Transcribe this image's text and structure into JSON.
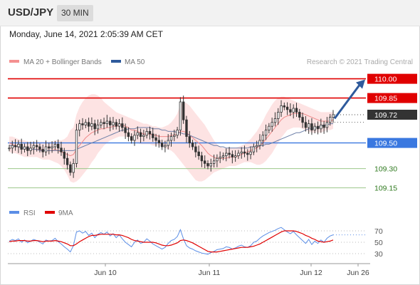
{
  "header": {
    "symbol": "USD/JPY",
    "timeframe": "30 MIN"
  },
  "datetime": "Monday, June 14, 2021 2:05:39 AM CET",
  "credit": "Research © 2021 Trading Central",
  "colors": {
    "bb": "#f49090",
    "ma50": "#2e5a9c",
    "resistance": "#e00000",
    "support_blue": "#3a78e0",
    "support_green": "#6aa84f",
    "current": "#333333",
    "rsi": "#5b8ee6",
    "rsi_ma": "#e00000"
  },
  "chart_data": [
    {
      "type": "line",
      "legend": [
        {
          "name": "MA 20 + Bollinger Bands"
        },
        {
          "name": "MA 50"
        }
      ],
      "ylim": [
        109.07,
        110.07
      ],
      "levels": [
        {
          "value": 110.0,
          "label": "110.00",
          "kind": "resistance"
        },
        {
          "value": 109.85,
          "label": "109.85",
          "kind": "resistance"
        },
        {
          "value": 109.72,
          "label": "109.72",
          "kind": "current"
        },
        {
          "value": 109.5,
          "label": "109.50",
          "kind": "support_blue"
        },
        {
          "value": 109.3,
          "label": "109.30",
          "kind": "support_green"
        },
        {
          "value": 109.15,
          "label": "109.15",
          "kind": "support_green"
        }
      ],
      "x_ticks": [
        "Jun 10",
        "Jun 11",
        "Jun 12",
        "Jun 26"
      ],
      "close": [
        109.46,
        109.48,
        109.47,
        109.49,
        109.45,
        109.47,
        109.44,
        109.46,
        109.48,
        109.47,
        109.45,
        109.43,
        109.47,
        109.46,
        109.47,
        109.49,
        109.46,
        109.43,
        109.38,
        109.33,
        109.27,
        109.34,
        109.6,
        109.65,
        109.64,
        109.66,
        109.63,
        109.65,
        109.61,
        109.64,
        109.66,
        109.65,
        109.67,
        109.64,
        109.66,
        109.63,
        109.65,
        109.62,
        109.58,
        109.55,
        109.52,
        109.56,
        109.58,
        109.55,
        109.56,
        109.59,
        109.57,
        109.54,
        109.52,
        109.5,
        109.47,
        109.48,
        109.52,
        109.55,
        109.56,
        109.6,
        109.82,
        109.68,
        109.55,
        109.5,
        109.47,
        109.43,
        109.4,
        109.36,
        109.34,
        109.32,
        109.34,
        109.36,
        109.38,
        109.39,
        109.4,
        109.42,
        109.41,
        109.39,
        109.4,
        109.42,
        109.43,
        109.42,
        109.41,
        109.43,
        109.47,
        109.48,
        109.52,
        109.56,
        109.6,
        109.63,
        109.66,
        109.69,
        109.74,
        109.79,
        109.78,
        109.76,
        109.74,
        109.77,
        109.74,
        109.7,
        109.66,
        109.62,
        109.65,
        109.6,
        109.63,
        109.61,
        109.64,
        109.62,
        109.66,
        109.7,
        109.72
      ],
      "ma20": [
        109.5,
        109.49,
        109.48,
        109.47,
        109.46,
        109.46,
        109.45,
        109.45,
        109.45,
        109.45,
        109.45,
        109.44,
        109.44,
        109.44,
        109.44,
        109.45,
        109.44,
        109.43,
        109.42,
        109.41,
        109.4,
        109.41,
        109.45,
        109.48,
        109.51,
        109.54,
        109.56,
        109.58,
        109.59,
        109.6,
        109.61,
        109.61,
        109.62,
        109.62,
        109.63,
        109.63,
        109.64,
        109.64,
        109.63,
        109.62,
        109.6,
        109.6,
        109.59,
        109.58,
        109.57,
        109.57,
        109.57,
        109.56,
        109.56,
        109.55,
        109.55,
        109.55,
        109.55,
        109.56,
        109.56,
        109.57,
        109.59,
        109.59,
        109.58,
        109.56,
        109.54,
        109.52,
        109.5,
        109.48,
        109.45,
        109.42,
        109.4,
        109.39,
        109.38,
        109.38,
        109.38,
        109.38,
        109.39,
        109.39,
        109.39,
        109.4,
        109.41,
        109.42,
        109.43,
        109.44,
        109.45,
        109.46,
        109.48,
        109.5,
        109.53,
        109.56,
        109.59,
        109.62,
        109.65,
        109.68,
        109.7,
        109.71,
        109.72,
        109.73,
        109.73,
        109.73,
        109.73,
        109.72,
        109.71,
        109.7,
        109.69,
        109.68,
        109.67,
        109.67,
        109.67,
        109.67,
        109.68
      ],
      "ma50": [
        109.48,
        109.48,
        109.47,
        109.47,
        109.46,
        109.46,
        109.46,
        109.45,
        109.45,
        109.45,
        109.44,
        109.44,
        109.44,
        109.44,
        109.44,
        109.44,
        109.44,
        109.44,
        109.44,
        109.44,
        109.44,
        109.44,
        109.45,
        109.46,
        109.47,
        109.48,
        109.49,
        109.5,
        109.51,
        109.52,
        109.53,
        109.54,
        109.55,
        109.56,
        109.57,
        109.58,
        109.59,
        109.6,
        109.6,
        109.61,
        109.61,
        109.61,
        109.62,
        109.62,
        109.62,
        109.62,
        109.62,
        109.61,
        109.61,
        109.61,
        109.6,
        109.6,
        109.59,
        109.59,
        109.59,
        109.58,
        109.58,
        109.57,
        109.57,
        109.56,
        109.55,
        109.54,
        109.53,
        109.52,
        109.51,
        109.5,
        109.49,
        109.48,
        109.48,
        109.47,
        109.47,
        109.46,
        109.46,
        109.46,
        109.46,
        109.46,
        109.46,
        109.46,
        109.46,
        109.47,
        109.47,
        109.47,
        109.48,
        109.48,
        109.49,
        109.49,
        109.5,
        109.51,
        109.52,
        109.53,
        109.54,
        109.55,
        109.56,
        109.57,
        109.58,
        109.58,
        109.59,
        109.6,
        109.61,
        109.61,
        109.62,
        109.62,
        109.63,
        109.64,
        109.64,
        109.65,
        109.65
      ],
      "bb_upper": [
        109.55,
        109.55,
        109.54,
        109.53,
        109.52,
        109.52,
        109.51,
        109.51,
        109.51,
        109.51,
        109.51,
        109.51,
        109.51,
        109.51,
        109.51,
        109.52,
        109.52,
        109.52,
        109.53,
        109.55,
        109.6,
        109.62,
        109.72,
        109.78,
        109.82,
        109.85,
        109.87,
        109.88,
        109.88,
        109.87,
        109.85,
        109.82,
        109.8,
        109.78,
        109.76,
        109.74,
        109.73,
        109.72,
        109.71,
        109.7,
        109.69,
        109.68,
        109.67,
        109.66,
        109.65,
        109.65,
        109.64,
        109.63,
        109.63,
        109.62,
        109.62,
        109.63,
        109.64,
        109.66,
        109.69,
        109.73,
        109.8,
        109.82,
        109.81,
        109.79,
        109.76,
        109.73,
        109.7,
        109.67,
        109.64,
        109.6,
        109.56,
        109.52,
        109.49,
        109.47,
        109.46,
        109.46,
        109.46,
        109.46,
        109.46,
        109.47,
        109.48,
        109.49,
        109.51,
        109.53,
        109.56,
        109.59,
        109.63,
        109.67,
        109.72,
        109.76,
        109.8,
        109.83,
        109.85,
        109.86,
        109.86,
        109.85,
        109.84,
        109.83,
        109.82,
        109.81,
        109.8,
        109.79,
        109.78,
        109.77,
        109.76,
        109.75,
        109.74,
        109.74,
        109.74,
        109.74,
        109.74
      ],
      "bb_lower": [
        109.43,
        109.42,
        109.42,
        109.41,
        109.4,
        109.39,
        109.39,
        109.39,
        109.39,
        109.39,
        109.38,
        109.37,
        109.37,
        109.37,
        109.36,
        109.35,
        109.34,
        109.32,
        109.29,
        109.25,
        109.2,
        109.19,
        109.2,
        109.22,
        109.25,
        109.28,
        109.31,
        109.35,
        109.38,
        109.42,
        109.45,
        109.48,
        109.5,
        109.52,
        109.53,
        109.54,
        109.55,
        109.55,
        109.55,
        109.54,
        109.52,
        109.51,
        109.5,
        109.49,
        109.49,
        109.49,
        109.49,
        109.48,
        109.48,
        109.48,
        109.47,
        109.46,
        109.45,
        109.44,
        109.42,
        109.39,
        109.36,
        109.33,
        109.3,
        109.27,
        109.24,
        109.21,
        109.2,
        109.2,
        109.21,
        109.23,
        109.25,
        109.27,
        109.28,
        109.29,
        109.3,
        109.31,
        109.32,
        109.32,
        109.32,
        109.33,
        109.34,
        109.35,
        109.35,
        109.35,
        109.34,
        109.33,
        109.33,
        109.34,
        109.36,
        109.39,
        109.42,
        109.46,
        109.5,
        109.54,
        109.57,
        109.6,
        109.61,
        109.62,
        109.62,
        109.62,
        109.61,
        109.6,
        109.59,
        109.58,
        109.58,
        109.58,
        109.58,
        109.59,
        109.6,
        109.6,
        109.61
      ],
      "projection": {
        "from": 109.69,
        "to": 110.0
      }
    },
    {
      "type": "line",
      "legend": [
        {
          "name": "RSI"
        },
        {
          "name": "9MA"
        }
      ],
      "ylim": [
        15,
        85
      ],
      "levels": [
        {
          "value": 70,
          "label": "70"
        },
        {
          "value": 50,
          "label": "50"
        },
        {
          "value": 30,
          "label": "30"
        }
      ],
      "rsi": [
        52,
        55,
        53,
        56,
        50,
        54,
        49,
        52,
        55,
        53,
        50,
        47,
        54,
        52,
        53,
        57,
        51,
        47,
        42,
        38,
        33,
        44,
        68,
        70,
        66,
        69,
        62,
        66,
        58,
        64,
        67,
        64,
        68,
        61,
        65,
        58,
        63,
        56,
        50,
        46,
        42,
        50,
        54,
        48,
        50,
        56,
        52,
        47,
        44,
        41,
        38,
        41,
        48,
        53,
        55,
        60,
        72,
        56,
        44,
        40,
        38,
        35,
        33,
        31,
        30,
        29,
        32,
        34,
        37,
        38,
        39,
        42,
        41,
        38,
        40,
        43,
        45,
        42,
        41,
        44,
        50,
        52,
        57,
        61,
        64,
        67,
        69,
        71,
        74,
        76,
        72,
        68,
        65,
        69,
        63,
        58,
        53,
        48,
        55,
        46,
        52,
        48,
        54,
        50,
        57,
        61,
        63
      ],
      "rsi_ma": [
        51,
        52,
        52,
        53,
        53,
        53,
        52,
        52,
        53,
        53,
        52,
        51,
        52,
        52,
        52,
        53,
        52,
        51,
        49,
        47,
        44,
        44,
        47,
        51,
        54,
        57,
        60,
        62,
        62,
        63,
        64,
        64,
        64,
        64,
        64,
        63,
        63,
        62,
        60,
        58,
        55,
        53,
        52,
        51,
        50,
        50,
        50,
        50,
        49,
        47,
        45,
        44,
        44,
        45,
        47,
        49,
        53,
        54,
        53,
        51,
        49,
        46,
        43,
        40,
        37,
        34,
        33,
        33,
        33,
        34,
        35,
        36,
        37,
        38,
        39,
        40,
        41,
        41,
        41,
        42,
        43,
        45,
        47,
        50,
        53,
        56,
        59,
        62,
        65,
        68,
        70,
        70,
        70,
        70,
        69,
        67,
        65,
        62,
        60,
        57,
        55,
        52,
        51,
        50,
        51,
        52,
        54
      ]
    }
  ]
}
